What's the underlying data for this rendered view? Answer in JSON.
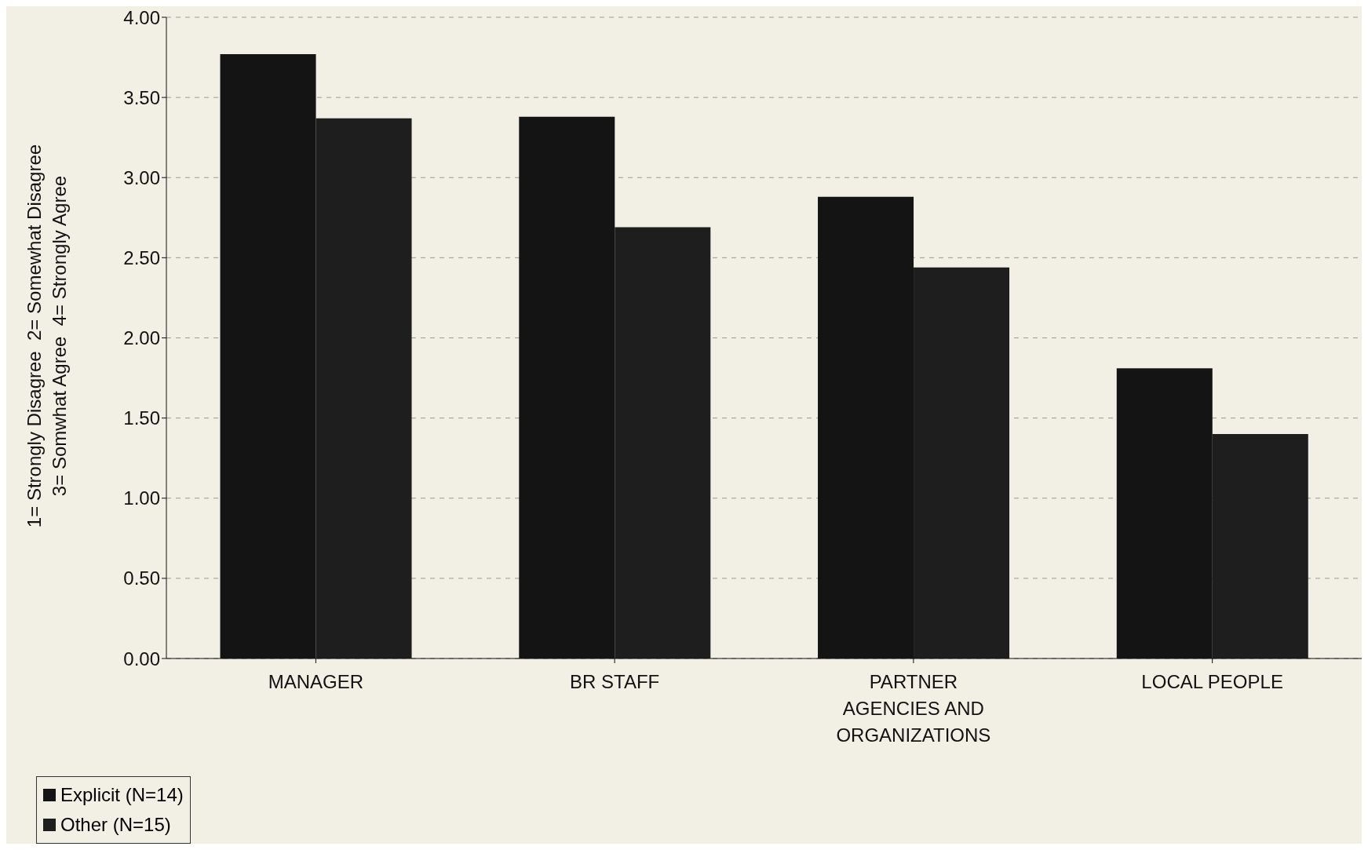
{
  "chart_data": {
    "type": "bar",
    "ylabel": "1= Strongly Disagree  2= Somewhat Disagree\n3= Somwhat Agree  4= Strongly Agree",
    "categories": [
      "MANAGER",
      "BR STAFF",
      "PARTNER AGENCIES AND ORGANIZATIONS",
      "LOCAL PEOPLE"
    ],
    "series": [
      {
        "name": "Explicit (N=14)",
        "color": "#141414",
        "values": [
          3.77,
          3.38,
          2.88,
          1.81
        ]
      },
      {
        "name": "Other (N=15)",
        "color": "#1e1e1e",
        "values": [
          3.37,
          2.69,
          2.44,
          1.4
        ]
      }
    ],
    "ylim": [
      0,
      4
    ],
    "yticks": [
      {
        "value": 0,
        "label": "0.00"
      },
      {
        "value": 0.5,
        "label": "0.50"
      },
      {
        "value": 1,
        "label": "1.00"
      },
      {
        "value": 1.5,
        "label": "1.50"
      },
      {
        "value": 2,
        "label": "2.00"
      },
      {
        "value": 2.5,
        "label": "2.50"
      },
      {
        "value": 3,
        "label": "3.00"
      },
      {
        "value": 3.5,
        "label": "3.50"
      },
      {
        "value": 4,
        "label": "4.00"
      }
    ],
    "grid": "y",
    "legend": "bottom left"
  }
}
